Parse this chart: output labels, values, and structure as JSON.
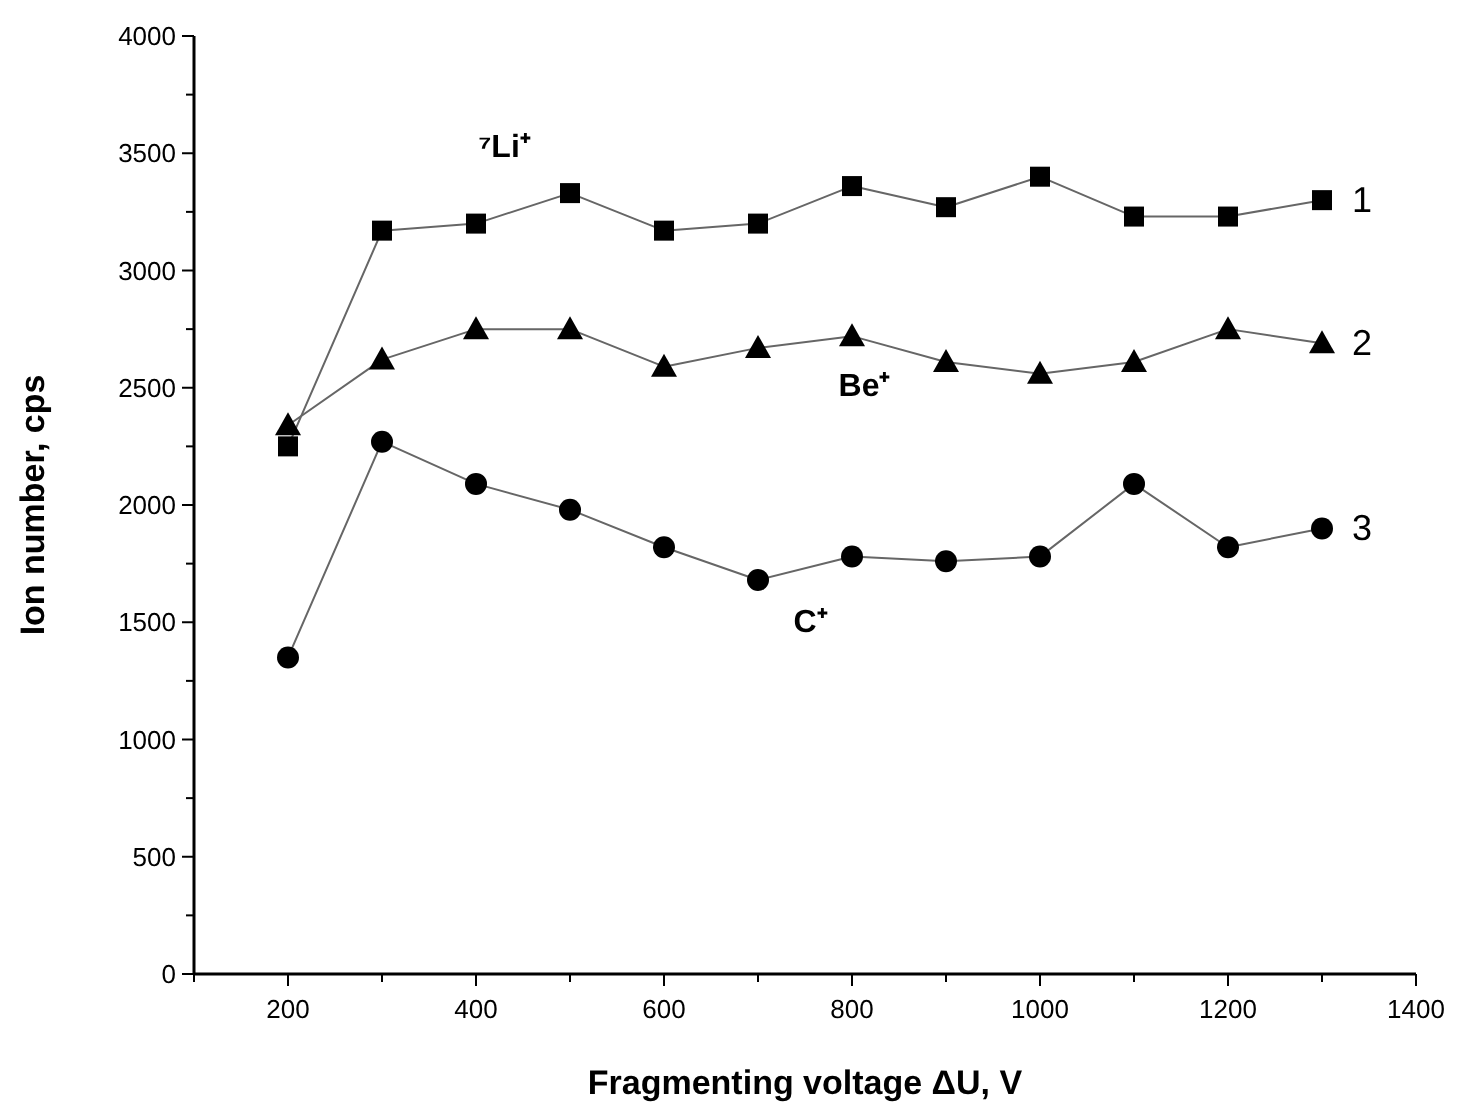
{
  "chart_data": {
    "type": "line",
    "xlabel": "Fragmenting voltage ΔU, V",
    "ylabel": "Ion number, cps",
    "x": [
      200,
      300,
      400,
      500,
      600,
      700,
      800,
      900,
      1000,
      1100,
      1200,
      1300
    ],
    "series": [
      {
        "name": "1",
        "color": "#000000",
        "marker": "square",
        "values": [
          2250,
          3170,
          3200,
          3330,
          3170,
          3200,
          3360,
          3270,
          3400,
          3230,
          3230,
          3300
        ]
      },
      {
        "name": "2",
        "color": "#000000",
        "marker": "triangle",
        "values": [
          2340,
          2620,
          2750,
          2750,
          2590,
          2670,
          2720,
          2610,
          2560,
          2610,
          2750,
          2690
        ]
      },
      {
        "name": "3",
        "color": "#000000",
        "marker": "circle",
        "values": [
          1350,
          2270,
          2090,
          1980,
          1820,
          1680,
          1780,
          1760,
          1780,
          2090,
          1820,
          1900
        ]
      }
    ],
    "annotations": [
      {
        "text": "⁷Li⁺",
        "x": 500,
        "y": 3330
      },
      {
        "text": "Be⁺",
        "x": 800,
        "y": 2720
      },
      {
        "text": "C⁺",
        "x": 700,
        "y": 1680
      }
    ],
    "xlim": [
      100,
      1400
    ],
    "xticks": [
      {
        "value": 100,
        "label": null
      },
      200,
      {
        "value": 300,
        "label": null
      },
      400,
      {
        "value": 500,
        "label": null
      },
      600,
      {
        "value": 700,
        "label": null
      },
      800,
      {
        "value": 900,
        "label": null
      },
      1000,
      {
        "value": 1100,
        "label": null
      },
      1200,
      {
        "value": 1300,
        "label": null
      },
      1400
    ],
    "ylim": [
      0,
      4000
    ],
    "yticks": [
      0,
      {
        "value": 250,
        "label": null
      },
      500,
      {
        "value": 750,
        "label": null
      },
      1000,
      {
        "value": 1250,
        "label": null
      },
      1500,
      {
        "value": 1750,
        "label": null
      },
      2000,
      {
        "value": 2250,
        "label": null
      },
      2500,
      {
        "value": 2750,
        "label": null
      },
      3000,
      {
        "value": 3250,
        "label": null
      },
      3500,
      {
        "value": 3750,
        "label": null
      },
      4000
    ],
    "grid": false,
    "line_style": "solid"
  }
}
